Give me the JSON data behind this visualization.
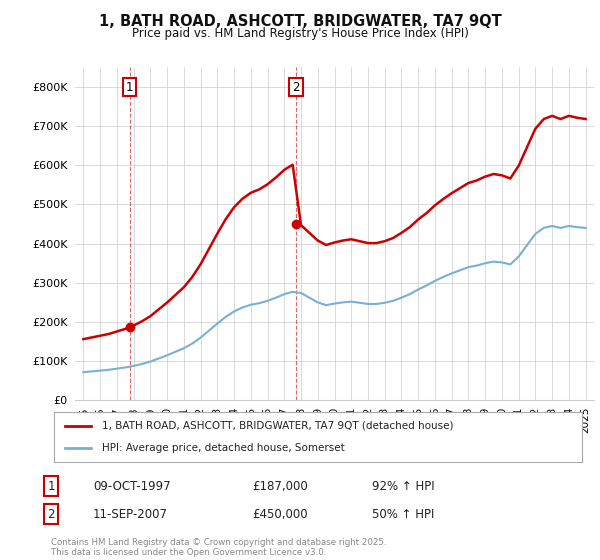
{
  "title": "1, BATH ROAD, ASHCOTT, BRIDGWATER, TA7 9QT",
  "subtitle": "Price paid vs. HM Land Registry's House Price Index (HPI)",
  "ylim": [
    0,
    850000
  ],
  "xlim": [
    1994.5,
    2025.5
  ],
  "background_color": "#ffffff",
  "grid_color": "#cccccc",
  "property_color": "#cc0000",
  "hpi_color": "#7aafd4",
  "sale1_year": 1997.77,
  "sale1_price": 187000,
  "sale2_year": 2007.69,
  "sale2_price": 450000,
  "legend_entries": [
    "1, BATH ROAD, ASHCOTT, BRIDGWATER, TA7 9QT (detached house)",
    "HPI: Average price, detached house, Somerset"
  ],
  "table": [
    {
      "num": "1",
      "date": "09-OCT-1997",
      "price": "£187,000",
      "hpi": "92% ↑ HPI"
    },
    {
      "num": "2",
      "date": "11-SEP-2007",
      "price": "£450,000",
      "hpi": "50% ↑ HPI"
    }
  ],
  "footnote": "Contains HM Land Registry data © Crown copyright and database right 2025.\nThis data is licensed under the Open Government Licence v3.0.",
  "yticks": [
    0,
    100000,
    200000,
    300000,
    400000,
    500000,
    600000,
    700000,
    800000
  ],
  "ytick_labels": [
    "£0",
    "£100K",
    "£200K",
    "£300K",
    "£400K",
    "£500K",
    "£600K",
    "£700K",
    "£800K"
  ],
  "xticks": [
    1995,
    1996,
    1997,
    1998,
    1999,
    2000,
    2001,
    2002,
    2003,
    2004,
    2005,
    2006,
    2007,
    2008,
    2009,
    2010,
    2011,
    2012,
    2013,
    2014,
    2015,
    2016,
    2017,
    2018,
    2019,
    2020,
    2021,
    2022,
    2023,
    2024,
    2025
  ],
  "hpi_years": [
    1995.0,
    1995.5,
    1996.0,
    1996.5,
    1997.0,
    1997.5,
    1998.0,
    1998.5,
    1999.0,
    1999.5,
    2000.0,
    2000.5,
    2001.0,
    2001.5,
    2002.0,
    2002.5,
    2003.0,
    2003.5,
    2004.0,
    2004.5,
    2005.0,
    2005.5,
    2006.0,
    2006.5,
    2007.0,
    2007.5,
    2008.0,
    2008.5,
    2009.0,
    2009.5,
    2010.0,
    2010.5,
    2011.0,
    2011.5,
    2012.0,
    2012.5,
    2013.0,
    2013.5,
    2014.0,
    2014.5,
    2015.0,
    2015.5,
    2016.0,
    2016.5,
    2017.0,
    2017.5,
    2018.0,
    2018.5,
    2019.0,
    2019.5,
    2020.0,
    2020.5,
    2021.0,
    2021.5,
    2022.0,
    2022.5,
    2023.0,
    2023.5,
    2024.0,
    2024.5,
    2025.0
  ],
  "hpi_values": [
    72000,
    74000,
    76000,
    78000,
    81000,
    84000,
    88000,
    93000,
    99000,
    107000,
    115000,
    124000,
    133000,
    145000,
    160000,
    178000,
    196000,
    213000,
    227000,
    237000,
    244000,
    248000,
    254000,
    262000,
    271000,
    277000,
    274000,
    262000,
    250000,
    243000,
    247000,
    250000,
    252000,
    249000,
    246000,
    246000,
    249000,
    254000,
    262000,
    271000,
    283000,
    293000,
    305000,
    315000,
    324000,
    332000,
    340000,
    344000,
    350000,
    354000,
    352000,
    347000,
    367000,
    396000,
    425000,
    440000,
    445000,
    440000,
    445000,
    442000,
    440000
  ]
}
